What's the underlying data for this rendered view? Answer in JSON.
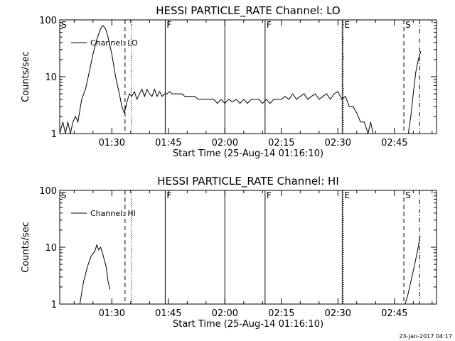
{
  "chart_data": [
    {
      "type": "line",
      "title": "HESSI PARTICLE_RATE Channel: LO",
      "xlabel": "Start Time (25-Aug-14 01:16:10)",
      "ylabel": "Counts/sec",
      "y_scale": "log",
      "ylim": [
        1,
        100
      ],
      "xlim": [
        "01:16:10",
        "02:56:10"
      ],
      "x_ticks": [
        "01:30",
        "01:45",
        "02:00",
        "02:15",
        "02:30",
        "02:45"
      ],
      "y_ticks": [
        "1",
        "10",
        "100"
      ],
      "legend": {
        "position": "top-left",
        "entries": [
          "Channel: LO"
        ]
      },
      "series": [
        {
          "name": "Channel: LO",
          "color": "#000000",
          "segments": [
            {
              "x": [
                "01:16:10",
                "01:17:00",
                "01:17:40",
                "01:18:20",
                "01:19:00",
                "01:19:40",
                "01:20:20",
                "01:21:00",
                "01:22:00",
                "01:23:00",
                "01:24:00",
                "01:25:00",
                "01:26:00",
                "01:27:00",
                "01:27:40",
                "01:28:20",
                "01:29:00",
                "01:30:00",
                "01:31:00",
                "01:32:00",
                "01:32:40",
                "01:33:20",
                "01:34:00",
                "01:34:40",
                "01:35:20",
                "01:36:00",
                "01:36:40",
                "01:37:20",
                "01:38:00",
                "01:38:40",
                "01:39:20",
                "01:40:00",
                "01:40:40",
                "01:41:20",
                "01:42:00",
                "01:42:40",
                "01:43:20",
                "01:44:00",
                "01:44:40",
                "01:45:20",
                "01:46:00",
                "01:46:40",
                "01:47:20",
                "01:48:00",
                "01:48:40",
                "01:49:20",
                "01:50:00",
                "01:51:00",
                "01:52:00",
                "01:53:00",
                "01:54:00",
                "01:55:00",
                "01:56:00",
                "01:57:00",
                "01:58:00",
                "01:59:00",
                "02:00:00",
                "02:01:00",
                "02:02:00",
                "02:03:00",
                "02:04:00",
                "02:05:00",
                "02:06:00",
                "02:07:00",
                "02:08:00",
                "02:09:00",
                "02:10:00",
                "02:11:00",
                "02:12:00",
                "02:13:00",
                "02:14:00",
                "02:15:00",
                "02:16:00",
                "02:17:00",
                "02:18:00",
                "02:19:00",
                "02:20:00",
                "02:21:00",
                "02:22:00",
                "02:23:00",
                "02:24:00",
                "02:25:00",
                "02:26:00",
                "02:27:00",
                "02:28:00",
                "02:29:00",
                "02:30:00",
                "02:31:00",
                "02:32:00",
                "02:33:00",
                "02:34:00",
                "02:35:00",
                "02:36:00",
                "02:37:00",
                "02:38:00",
                "02:38:40",
                "02:39:20"
              ],
              "y": [
                1,
                1.6,
                1,
                1.6,
                1,
                1.6,
                2,
                1.6,
                4,
                6,
                12,
                25,
                45,
                70,
                80,
                70,
                50,
                25,
                10,
                5,
                3,
                2.3,
                3.6,
                5,
                4.5,
                5.5,
                4,
                5,
                6,
                4.5,
                6,
                5,
                4.5,
                6,
                4.5,
                5.5,
                4.5,
                5,
                5,
                5.5,
                5,
                5,
                5,
                5,
                5,
                4.5,
                4.5,
                4.5,
                4.5,
                4,
                4,
                4,
                4,
                4,
                3.4,
                4,
                3.4,
                4,
                3.6,
                4,
                3.4,
                4,
                3.4,
                4,
                4,
                4,
                3.4,
                4,
                3.4,
                4,
                4,
                4,
                4.5,
                4,
                5,
                4,
                4.5,
                5,
                4,
                4.5,
                5,
                4,
                4.5,
                5,
                4,
                5,
                5.5,
                4,
                4.5,
                3,
                3,
                2.3,
                1.6,
                1.6,
                1,
                1.6,
                1
              ]
            },
            {
              "x": [
                "02:48:40",
                "02:49:20",
                "02:50:00",
                "02:50:40",
                "02:51:20",
                "02:52:00"
              ],
              "y": [
                1,
                2,
                5,
                12,
                20,
                28
              ]
            }
          ]
        }
      ],
      "markers": [
        {
          "label": "S",
          "time": "01:16:10",
          "style": "solid"
        },
        {
          "time": "01:33:30",
          "style": "dashed"
        },
        {
          "time": "01:35:10",
          "style": "dotted"
        },
        {
          "label": "F",
          "time": "01:44:10",
          "style": "solid"
        },
        {
          "time": "02:00:00",
          "style": "solid"
        },
        {
          "label": "F",
          "time": "02:10:40",
          "style": "solid"
        },
        {
          "label": "E",
          "time": "02:31:20",
          "style": "double"
        },
        {
          "label": "S",
          "time": "02:47:30",
          "style": "dashed"
        },
        {
          "time": "02:51:40",
          "style": "dashdot"
        }
      ]
    },
    {
      "type": "line",
      "title": "HESSI PARTICLE_RATE Channel: HI",
      "xlabel": "Start Time (25-Aug-14 01:16:10)",
      "ylabel": "Counts/sec",
      "y_scale": "log",
      "ylim": [
        1,
        100
      ],
      "xlim": [
        "01:16:10",
        "02:56:10"
      ],
      "x_ticks": [
        "01:30",
        "01:45",
        "02:00",
        "02:15",
        "02:30",
        "02:45"
      ],
      "y_ticks": [
        "1",
        "10",
        "100"
      ],
      "legend": {
        "position": "top-left",
        "entries": [
          "Channel: HI"
        ]
      },
      "series": [
        {
          "name": "Channel: HI",
          "color": "#000000",
          "segments": [
            {
              "x": [
                "01:21:30",
                "01:22:30",
                "01:23:30",
                "01:24:30",
                "01:25:30",
                "01:26:00",
                "01:26:30",
                "01:27:00",
                "01:27:30",
                "01:28:00",
                "01:28:30",
                "01:29:00",
                "01:29:30"
              ],
              "y": [
                1,
                2.5,
                4.5,
                7,
                8.5,
                11,
                9,
                10,
                8,
                6,
                4.5,
                2.5,
                1.8
              ]
            },
            {
              "x": [
                "02:47:50",
                "02:48:30",
                "02:49:10",
                "02:49:50",
                "02:50:30",
                "02:51:10",
                "02:51:50"
              ],
              "y": [
                1,
                1.4,
                2.2,
                3.4,
                5.5,
                9,
                16
              ]
            }
          ]
        }
      ],
      "markers": [
        {
          "label": "S",
          "time": "01:16:10",
          "style": "solid"
        },
        {
          "time": "01:33:30",
          "style": "dashed"
        },
        {
          "time": "01:35:10",
          "style": "dotted"
        },
        {
          "label": "F",
          "time": "01:44:10",
          "style": "solid"
        },
        {
          "time": "02:00:00",
          "style": "solid"
        },
        {
          "label": "F",
          "time": "02:10:40",
          "style": "solid"
        },
        {
          "label": "E",
          "time": "02:31:20",
          "style": "double"
        },
        {
          "label": "S",
          "time": "02:47:30",
          "style": "dashed"
        },
        {
          "time": "02:51:40",
          "style": "dashdot"
        }
      ]
    }
  ],
  "footer": {
    "stamp": "23-Jan-2017 04:17"
  }
}
